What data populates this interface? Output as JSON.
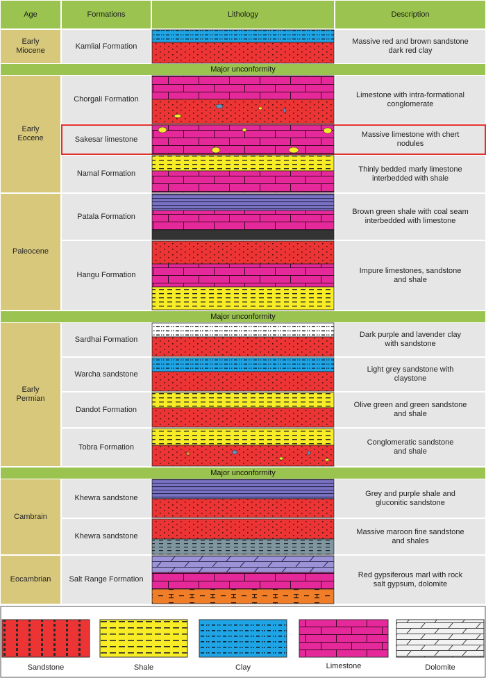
{
  "headers": {
    "age": "Age",
    "formations": "Formations",
    "lithology": "Lithology",
    "description": "Description"
  },
  "unconformity_label": "Major unconformity",
  "ages": {
    "early_miocene": "Early\nMiocene",
    "early_eocene": "Early\nEocene",
    "paleocene": "Paleocene",
    "early_permian": "Early\nPermian",
    "cambrain": "Cambrain",
    "eocambrian": "Eocambrian"
  },
  "formations": [
    {
      "name": "Kamlial Formation",
      "description": "Massive red and brown sandstone\ndark red clay",
      "layers": [
        "clay",
        "sandstone"
      ]
    },
    {
      "name": "Chorgali Formation",
      "description": "Limestone with intra-formational\nconglomerate",
      "layers": [
        "limestone",
        "conglomerate-sandstone"
      ]
    },
    {
      "name": "Sakesar limestone",
      "description": "Massive limestone with chert\nnodules",
      "layers": [
        "chert-limestone"
      ],
      "highlighted": true
    },
    {
      "name": "Namal Formation",
      "description": "Thinly bedded marly limestone\ninterbedded with shale",
      "layers": [
        "shale",
        "limestone"
      ]
    },
    {
      "name": "Patala Formation",
      "description": "Brown green shale with coal seam\ninterbedded with limestone",
      "layers": [
        "purple-shale",
        "limestone",
        "coal"
      ]
    },
    {
      "name": "Hangu Formation",
      "description": "Impure limestones, sandstone\nand shale",
      "layers": [
        "sandstone",
        "limestone",
        "shale"
      ]
    },
    {
      "name": "Sardhai Formation",
      "description": "Dark purple and lavender clay\nwith sandstone",
      "layers": [
        "white-clay",
        "sandstone"
      ]
    },
    {
      "name": "Warcha sandstone",
      "description": "Light grey sandstone with\nclaystone",
      "layers": [
        "clay",
        "sandstone"
      ]
    },
    {
      "name": "Dandot Formation",
      "description": "Olive green and green sandstone\nand shale",
      "layers": [
        "shale",
        "sandstone"
      ]
    },
    {
      "name": "Tobra Formation",
      "description": "Conglomeratic sandstone\nand shale",
      "layers": [
        "shale",
        "conglomerate-sandstone"
      ]
    },
    {
      "name": "Khewra sandstone",
      "description": "Grey and purple shale and\ngluconitic sandstone",
      "layers": [
        "purple-shale",
        "sandstone"
      ]
    },
    {
      "name": "Khewra sandstone",
      "description": "Massive maroon fine sandstone\nand shales",
      "layers": [
        "sandstone",
        "grey-shale"
      ]
    },
    {
      "name": "Salt Range Formation",
      "description": "Red gypsiferous marl with rock\nsalt gypsum, dolomite",
      "layers": [
        "lavender-dolomite",
        "limestone",
        "orange-marl"
      ]
    }
  ],
  "legend": [
    {
      "label": "Sandstone",
      "pattern": "sandstone"
    },
    {
      "label": "Shale",
      "pattern": "shale"
    },
    {
      "label": "Clay",
      "pattern": "clay"
    },
    {
      "label": "Limestone",
      "pattern": "limestone"
    },
    {
      "label": "Dolomite",
      "pattern": "dolomite"
    }
  ],
  "colors": {
    "header_green": "#9bc350",
    "age_tan": "#d8c87c",
    "formation_grey": "#e6e6e6",
    "sandstone": "#ec3434",
    "shale": "#f7ec26",
    "clay": "#1fa5e6",
    "limestone": "#e6299a",
    "highlight": "#e0312f"
  }
}
